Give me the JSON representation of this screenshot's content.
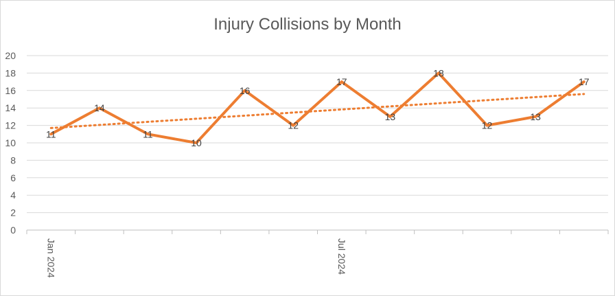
{
  "chart_data": {
    "type": "line",
    "title": "Injury Collisions by Month",
    "xlabel": "",
    "ylabel": "",
    "x": [
      "2024-01",
      "2024-02",
      "2024-03",
      "2024-04",
      "2024-05",
      "2024-06",
      "2024-07",
      "2024-08",
      "2024-09",
      "2024-10",
      "2024-11",
      "2024-12"
    ],
    "x_tick_labels": [
      {
        "x": "2024-01",
        "label": "Jan 2024"
      },
      {
        "x": "2024-07",
        "label": "Jul 2024"
      }
    ],
    "series": [
      {
        "name": "",
        "values": [
          11,
          14,
          11,
          10,
          16,
          12,
          17,
          13,
          18,
          12,
          13,
          17
        ],
        "color": "#ED7D31"
      }
    ],
    "trendline": {
      "type": "linear",
      "style": "dotted",
      "color": "#ED7D31",
      "start": 11.7,
      "end": 15.6
    },
    "ylim": [
      0,
      20
    ],
    "y_ticks": [
      0,
      2,
      4,
      6,
      8,
      10,
      12,
      14,
      16,
      18,
      20
    ],
    "grid": true,
    "legend": "none",
    "data_labels": true
  }
}
